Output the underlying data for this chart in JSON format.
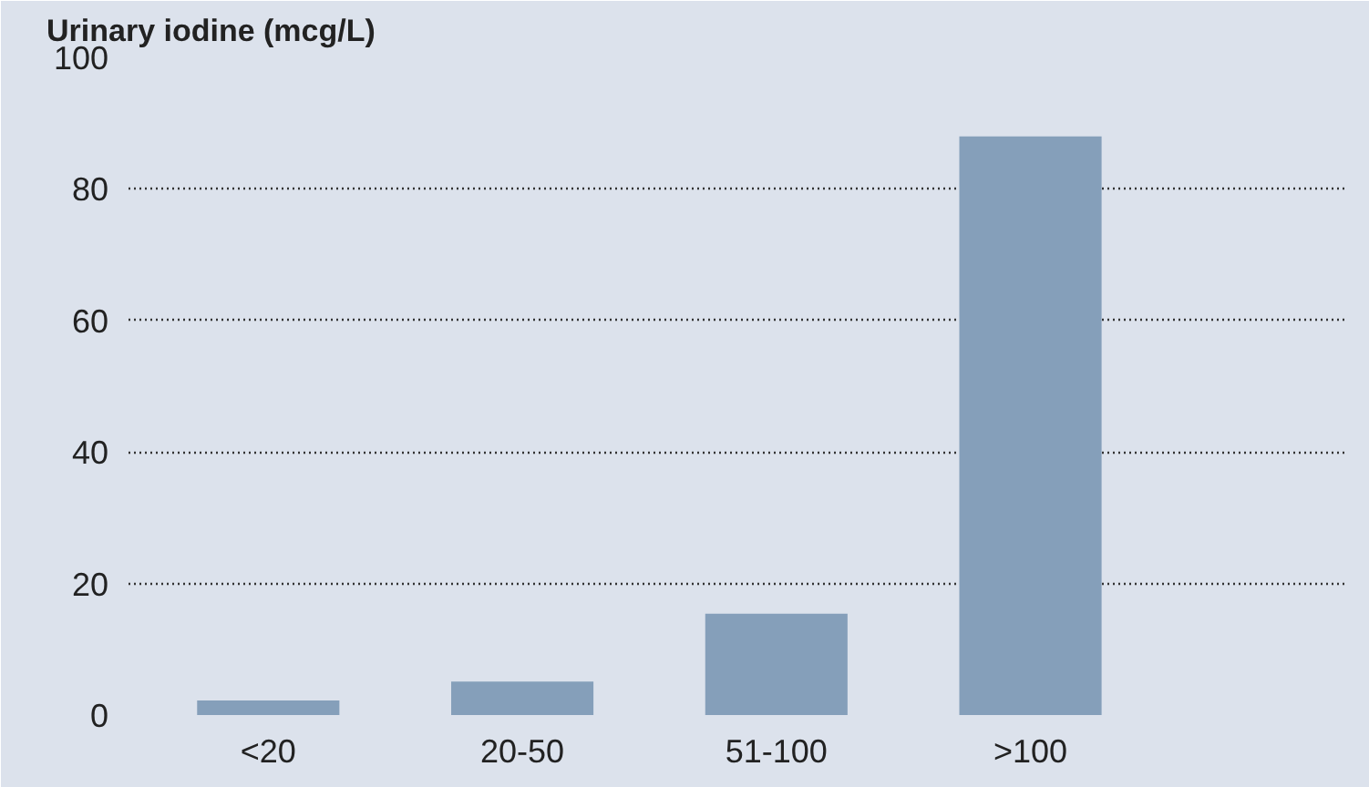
{
  "chart_data": {
    "type": "bar",
    "title": "Urinary iodine (mcg/L)",
    "categories": [
      "<20",
      "20-50",
      "51-100",
      ">100"
    ],
    "values": [
      2.2,
      5.1,
      15.4,
      88
    ],
    "color": "#859fba",
    "ylim": [
      0,
      100
    ],
    "yticks": [
      0,
      20,
      40,
      60,
      80,
      100
    ],
    "grid": "y"
  }
}
